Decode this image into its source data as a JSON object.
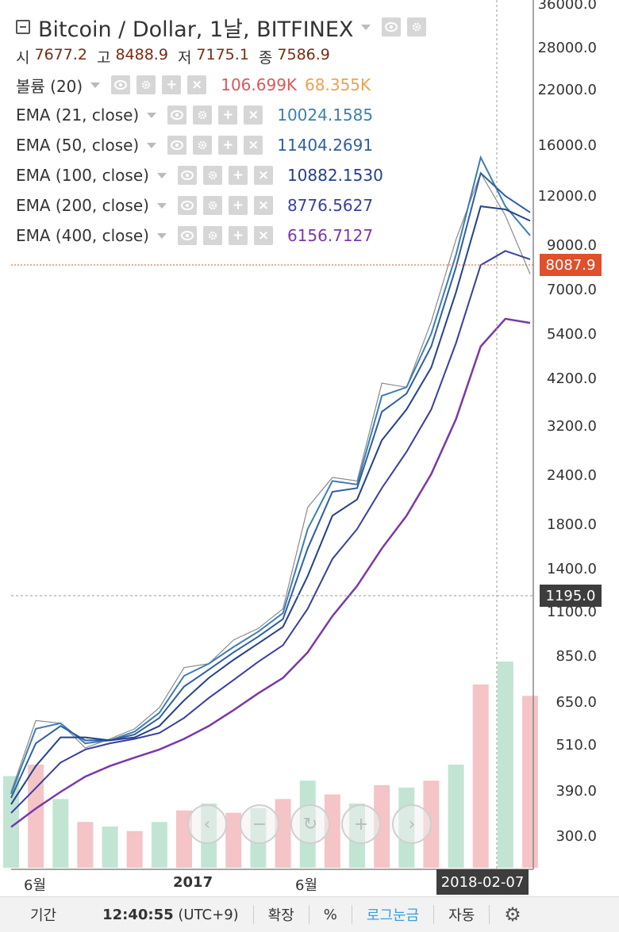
{
  "header": {
    "title": "Bitcoin / Dollar, 1날, BITFINEX",
    "ohlc": [
      {
        "label": "시",
        "value": "7677.2"
      },
      {
        "label": "고",
        "value": "8488.9"
      },
      {
        "label": "저",
        "value": "7175.1"
      },
      {
        "label": "종",
        "value": "7586.9"
      }
    ]
  },
  "indicators": [
    {
      "label": "볼륨 (20)",
      "values": [
        "106.699K",
        "68.355K"
      ],
      "colors": [
        "#e0555b",
        "#f0a04b"
      ]
    },
    {
      "label": "EMA (21, close)",
      "values": [
        "10024.1585"
      ],
      "colors": [
        "#3d7fb0"
      ]
    },
    {
      "label": "EMA (50, close)",
      "values": [
        "11404.2691"
      ],
      "colors": [
        "#2f5f9f"
      ]
    },
    {
      "label": "EMA (100, close)",
      "values": [
        "10882.1530"
      ],
      "colors": [
        "#24418a"
      ]
    },
    {
      "label": "EMA (200, close)",
      "values": [
        "8776.5627"
      ],
      "colors": [
        "#3a3ea0"
      ]
    },
    {
      "label": "EMA (400, close)",
      "values": [
        "6156.7127"
      ],
      "colors": [
        "#7a38a8"
      ]
    }
  ],
  "price_axis": [
    "36000.0",
    "28000.0",
    "22000.0",
    "16000.0",
    "12000.0",
    "9000.0",
    "7000.0",
    "5400.0",
    "4200.0",
    "3200.0",
    "2400.0",
    "1800.0",
    "1400.0",
    "1100.0",
    "850.0",
    "650.0",
    "510.0",
    "390.0",
    "300.0"
  ],
  "price_tag_last": "8087.9",
  "price_tag_cursor": "1195.0",
  "time_axis": [
    "6월",
    "2017",
    "6월"
  ],
  "cursor_date": "2018-02-07",
  "bottom_bar": {
    "period": "기간",
    "time": "12:40:55",
    "tz": "(UTC+9)",
    "expand": "확장",
    "percent": "%",
    "log": "로그눈금",
    "auto": "자동"
  },
  "colors": {
    "last_price": "#e0502c",
    "cursor_tag": "#3d3d3d",
    "log_active": "#3aa0d8"
  },
  "chart_data": {
    "type": "line",
    "title": "Bitcoin / Dollar, 1날, BITFINEX",
    "scale": "log",
    "x": [
      "2016-05",
      "2016-06",
      "2016-07",
      "2016-08",
      "2016-09",
      "2016-10",
      "2016-11",
      "2016-12",
      "2017-01",
      "2017-02",
      "2017-03",
      "2017-04",
      "2017-05",
      "2017-06",
      "2017-07",
      "2017-08",
      "2017-09",
      "2017-10",
      "2017-11",
      "2017-12",
      "2018-01",
      "2018-02"
    ],
    "series": [
      {
        "name": "close",
        "values": [
          450,
          670,
          660,
          575,
          605,
          640,
          720,
          900,
          920,
          1050,
          1120,
          1250,
          2200,
          2600,
          2550,
          4400,
          4300,
          6200,
          9800,
          14200,
          11200,
          8088
        ]
      },
      {
        "name": "EMA (21, close)",
        "values": [
          445,
          640,
          660,
          590,
          600,
          630,
          700,
          860,
          920,
          1010,
          1100,
          1220,
          1950,
          2550,
          2500,
          4100,
          4300,
          5800,
          9000,
          15500,
          11800,
          10024
        ]
      },
      {
        "name": "EMA (50, close)",
        "values": [
          435,
          590,
          650,
          600,
          600,
          620,
          680,
          810,
          890,
          980,
          1070,
          1180,
          1750,
          2400,
          2450,
          3750,
          4150,
          5400,
          8400,
          14200,
          12500,
          11404
        ]
      },
      {
        "name": "EMA (100, close)",
        "values": [
          420,
          520,
          610,
          610,
          600,
          610,
          650,
          750,
          850,
          940,
          1030,
          1130,
          1500,
          2100,
          2300,
          3200,
          3800,
          4800,
          7300,
          11800,
          11600,
          10882
        ]
      },
      {
        "name": "EMA (200, close)",
        "values": [
          400,
          460,
          530,
          570,
          590,
          605,
          625,
          680,
          760,
          840,
          930,
          1020,
          1250,
          1650,
          1950,
          2450,
          3000,
          3800,
          5500,
          8500,
          9200,
          8777
        ]
      },
      {
        "name": "EMA (400, close)",
        "values": [
          370,
          410,
          450,
          490,
          520,
          545,
          570,
          605,
          650,
          710,
          780,
          850,
          980,
          1200,
          1420,
          1750,
          2100,
          2650,
          3600,
          5400,
          6300,
          6157
        ]
      }
    ],
    "volume": [
      40,
      45,
      30,
      20,
      18,
      16,
      20,
      25,
      28,
      24,
      26,
      30,
      38,
      32,
      28,
      36,
      35,
      38,
      45,
      80,
      90,
      75
    ],
    "ylim": [
      300,
      36000
    ],
    "xlabel": "",
    "ylabel": ""
  }
}
